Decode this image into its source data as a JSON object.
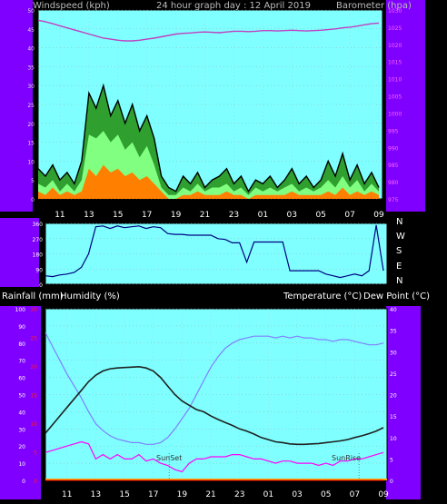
{
  "header": {
    "windspeed_label": "Windspeed (kph)",
    "title": "24 hour graph day : 12 April 2019",
    "barometer_label": "Barometer (hpa)"
  },
  "direction_letters": [
    "N",
    "W",
    "S",
    "E",
    "N"
  ],
  "lower_header": {
    "rain_label": "Rainfall (mm)",
    "humidity_label": "Humidity (%)",
    "temp_label": "Temperature (°C)",
    "dewpoint_label": "Dew Point (°C)"
  },
  "annotations": {
    "sunset": "SunSet",
    "sunrise": "SunRise"
  },
  "colors": {
    "panel_bg": "#7fffff",
    "frame": "#7f00ff",
    "wind_gust": "#000000",
    "wind_avg": "#2fa02f",
    "wind_light": "#80ff80",
    "wind_low": "#ff8000",
    "barometer": "#c040c0",
    "direction": "#000080",
    "temperature": "#202020",
    "humidity": "#8080ff",
    "dewpoint": "#ff00ff",
    "rain": "#ff0000"
  },
  "chart_data": [
    {
      "type": "line",
      "name": "wind_and_pressure",
      "x_ticks": [
        "11",
        "13",
        "15",
        "17",
        "19",
        "21",
        "23",
        "01",
        "03",
        "05",
        "07",
        "09"
      ],
      "y_left": {
        "label": "Windspeed (kph)",
        "range": [
          0,
          50
        ],
        "ticks": [
          "0",
          "5",
          "10",
          "15",
          "20",
          "25",
          "30",
          "35",
          "40",
          "45",
          "50"
        ]
      },
      "y_right": {
        "label": "Barometer (hpa)",
        "range": [
          975,
          1030
        ],
        "ticks": [
          "975",
          "980",
          "985",
          "990",
          "995",
          "1000",
          "1005",
          "1010",
          "1015",
          "1020",
          "1025",
          "1030"
        ]
      },
      "hours": [
        9.5,
        10,
        10.5,
        11,
        11.5,
        12,
        12.5,
        13,
        13.5,
        14,
        14.5,
        15,
        15.5,
        16,
        16.5,
        17,
        17.5,
        18,
        18.5,
        19,
        19.5,
        20,
        20.5,
        21,
        21.5,
        22,
        22.5,
        23,
        23.5,
        24,
        24.5,
        25,
        25.5,
        26,
        26.5,
        27,
        27.5,
        28,
        28.5,
        29,
        29.5,
        30,
        30.5,
        31,
        31.5,
        32,
        32.5,
        33
      ],
      "series": [
        {
          "name": "gust",
          "values": [
            8,
            6,
            9,
            5,
            7,
            4,
            10,
            28,
            24,
            30,
            22,
            26,
            20,
            25,
            18,
            22,
            16,
            6,
            3,
            2,
            6,
            4,
            7,
            3,
            5,
            6,
            8,
            4,
            6,
            2,
            5,
            4,
            6,
            3,
            5,
            8,
            4,
            6,
            3,
            5,
            10,
            6,
            12,
            5,
            9,
            4,
            7,
            3
          ]
        },
        {
          "name": "average",
          "values": [
            4,
            3,
            5,
            2,
            4,
            2,
            5,
            17,
            16,
            18,
            15,
            17,
            13,
            15,
            11,
            14,
            9,
            3,
            1,
            1,
            3,
            2,
            4,
            2,
            3,
            3,
            4,
            2,
            3,
            1,
            3,
            2,
            3,
            2,
            3,
            4,
            2,
            3,
            2,
            3,
            5,
            3,
            6,
            3,
            5,
            2,
            4,
            2
          ]
        },
        {
          "name": "low",
          "values": [
            2,
            1,
            3,
            1,
            2,
            1,
            2,
            8,
            6,
            9,
            7,
            8,
            6,
            7,
            5,
            6,
            4,
            2,
            0,
            0,
            1,
            1,
            2,
            1,
            1,
            1,
            2,
            1,
            1,
            0,
            1,
            1,
            1,
            1,
            1,
            2,
            1,
            1,
            1,
            1,
            2,
            1,
            3,
            1,
            2,
            1,
            2,
            1
          ]
        },
        {
          "name": "barometer",
          "axis": "right",
          "values": [
            1027,
            1026.6,
            1026,
            1025.4,
            1024.8,
            1024.2,
            1023.6,
            1023,
            1022.4,
            1021.8,
            1021.5,
            1021.2,
            1021,
            1021,
            1021.2,
            1021.5,
            1021.8,
            1022.2,
            1022.6,
            1023,
            1023.2,
            1023.3,
            1023.5,
            1023.6,
            1023.5,
            1023.4,
            1023.6,
            1023.8,
            1023.8,
            1023.7,
            1023.8,
            1024,
            1024,
            1023.9,
            1024,
            1024.1,
            1024,
            1023.9,
            1024,
            1024.1,
            1024.3,
            1024.5,
            1024.8,
            1025,
            1025.3,
            1025.7,
            1026,
            1026.2
          ]
        }
      ]
    },
    {
      "type": "line",
      "name": "wind_direction",
      "x_ticks": [
        "11",
        "13",
        "15",
        "17",
        "19",
        "21",
        "23",
        "01",
        "03",
        "05",
        "07",
        "09"
      ],
      "y": {
        "range": [
          0,
          360
        ],
        "ticks": [
          "0",
          "90",
          "180",
          "270",
          "360"
        ]
      },
      "hours": [
        9.5,
        10,
        10.5,
        11,
        11.5,
        12,
        12.5,
        13,
        13.5,
        14,
        14.5,
        15,
        15.5,
        16,
        16.5,
        17,
        17.5,
        18,
        18.5,
        19,
        19.5,
        20,
        20.5,
        21,
        21.5,
        22,
        22.5,
        23,
        23.5,
        24,
        24.5,
        25,
        25.5,
        26,
        26.5,
        27,
        27.5,
        28,
        28.5,
        29,
        29.5,
        30,
        30.5,
        31,
        31.5,
        32,
        32.5,
        33
      ],
      "values": [
        50,
        45,
        55,
        60,
        70,
        100,
        180,
        340,
        345,
        330,
        345,
        335,
        340,
        345,
        330,
        340,
        335,
        300,
        295,
        295,
        290,
        290,
        290,
        290,
        270,
        265,
        245,
        245,
        130,
        250,
        250,
        250,
        250,
        250,
        80,
        80,
        80,
        80,
        80,
        60,
        50,
        40,
        50,
        60,
        50,
        80,
        350,
        80
      ]
    },
    {
      "type": "line",
      "name": "temperature_humidity",
      "x_ticks": [
        "11",
        "13",
        "15",
        "17",
        "19",
        "21",
        "23",
        "01",
        "03",
        "05",
        "07",
        "09"
      ],
      "y_left": {
        "label": "Humidity (%)",
        "range": [
          0,
          100
        ],
        "ticks": [
          "0",
          "10",
          "20",
          "30",
          "40",
          "50",
          "60",
          "70",
          "80",
          "90",
          "100"
        ]
      },
      "y_rain": {
        "label": "Rainfall (mm)",
        "range": [
          0,
          30
        ],
        "ticks": [
          "0",
          "5",
          "10",
          "15",
          "20",
          "25",
          "30"
        ]
      },
      "y_right": {
        "label": "Temperature (°C)",
        "range": [
          0,
          40
        ],
        "ticks": [
          "0",
          "5",
          "10",
          "15",
          "20",
          "25",
          "30",
          "35",
          "40"
        ]
      },
      "hours": [
        9.5,
        10,
        10.5,
        11,
        11.5,
        12,
        12.5,
        13,
        13.5,
        14,
        14.5,
        15,
        15.5,
        16,
        16.5,
        17,
        17.5,
        18,
        18.5,
        19,
        19.5,
        20,
        20.5,
        21,
        21.5,
        22,
        22.5,
        23,
        23.5,
        24,
        24.5,
        25,
        25.5,
        26,
        26.5,
        27,
        27.5,
        28,
        28.5,
        29,
        29.5,
        30,
        30.5,
        31,
        31.5,
        32,
        32.5,
        33
      ],
      "series": [
        {
          "name": "temperature",
          "values": [
            11,
            13,
            15,
            17,
            19,
            21,
            23,
            24.5,
            25.5,
            26,
            26.2,
            26.3,
            26.4,
            26.5,
            26.2,
            25.5,
            24,
            22,
            20,
            18.5,
            17.5,
            16.5,
            16,
            15,
            14.2,
            13.5,
            12.8,
            12,
            11.5,
            10.8,
            10,
            9.5,
            9,
            8.8,
            8.5,
            8.4,
            8.4,
            8.5,
            8.6,
            8.8,
            9,
            9.2,
            9.5,
            10,
            10.4,
            10.9,
            11.5,
            12.3
          ]
        },
        {
          "name": "humidity",
          "values": [
            86,
            78,
            70,
            62,
            55,
            48,
            40,
            33,
            29,
            26,
            24,
            23,
            22,
            22,
            21,
            21,
            22,
            25,
            30,
            36,
            42,
            50,
            58,
            66,
            72,
            77,
            80,
            82,
            83,
            84,
            84,
            84,
            83,
            84,
            83,
            84,
            83,
            83,
            82,
            82,
            81,
            82,
            82,
            81,
            80,
            79,
            79,
            80
          ]
        },
        {
          "name": "dewpoint",
          "values": [
            6.5,
            7,
            7.5,
            8,
            8.5,
            9,
            8.5,
            5,
            6,
            5,
            6,
            5,
            5,
            6,
            4.5,
            5,
            4,
            3.5,
            2.5,
            2,
            4,
            5,
            5,
            5.5,
            5.5,
            5.5,
            6,
            6,
            5.5,
            5,
            5,
            4.5,
            4,
            4.5,
            4.5,
            4,
            4,
            4,
            3.5,
            4,
            3.5,
            4.5,
            4.5,
            5,
            5,
            5.5,
            6,
            6.5
          ]
        },
        {
          "name": "rain",
          "axis": "rain",
          "values": [
            0,
            0,
            0,
            0,
            0,
            0,
            0,
            0,
            0,
            0,
            0,
            0,
            0,
            0,
            0,
            0,
            0,
            0,
            0,
            0,
            0,
            0,
            0,
            0,
            0,
            0,
            0,
            0,
            0,
            0,
            0,
            0,
            0,
            0,
            0,
            0,
            0,
            0,
            0,
            0,
            0,
            0,
            0,
            0,
            0,
            0,
            0,
            0
          ]
        }
      ],
      "markers": [
        {
          "label": "SunSet",
          "hour": 18.1
        },
        {
          "label": "SunRise",
          "hour": 31.3
        }
      ]
    }
  ]
}
